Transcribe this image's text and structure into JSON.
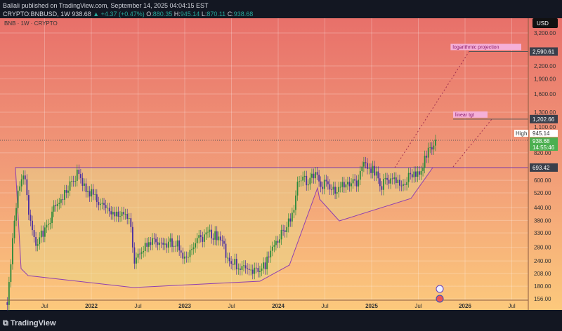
{
  "header": {
    "publisher": "Ballali published on TradingView.com, September 14, 2025 04:04:15 EST",
    "symbol": "CRYPTO:BNBUSD, 1W",
    "last": "938.68",
    "change": "+4.37 (+0.47%)",
    "o": "880.35",
    "h": "945.14",
    "l": "870.11",
    "c": "938.68"
  },
  "legend": "BNB · 1W · CRYPTO",
  "currency": "USD",
  "footer": "TradingView",
  "colors": {
    "up": "#2a8a3a",
    "down": "#4b2fa0",
    "drawing": "#9c27b0",
    "last": "#4caf50"
  },
  "chart_data": {
    "type": "candlestick",
    "title": "BNB · 1W · CRYPTO",
    "yscale": "log",
    "ylim": [
      150,
      3400
    ],
    "xlim": [
      2020.95,
      2026.6
    ],
    "y_ticks": [
      3200,
      2200,
      1900,
      1600,
      1300,
      1100,
      820,
      600,
      520,
      440,
      380,
      330,
      280,
      240,
      208,
      180,
      156
    ],
    "y_tick_labels": [
      "3,200.00",
      "2,200.00",
      "1,900.00",
      "1,600.00",
      "1,300.00",
      "1,100.00",
      "820.00",
      "600.00",
      "520.00",
      "440.00",
      "380.00",
      "330.00",
      "280.00",
      "240.00",
      "208.00",
      "180.00",
      "156.00"
    ],
    "x_ticks": [
      {
        "t": 2021.5,
        "label": "Jul"
      },
      {
        "t": 2022,
        "label": "2022"
      },
      {
        "t": 2022.5,
        "label": "Jul"
      },
      {
        "t": 2023,
        "label": "2023"
      },
      {
        "t": 2023.5,
        "label": "Jul"
      },
      {
        "t": 2024,
        "label": "2024"
      },
      {
        "t": 2024.5,
        "label": "Jul"
      },
      {
        "t": 2025,
        "label": "2025"
      },
      {
        "t": 2025.5,
        "label": "Jul"
      },
      {
        "t": 2026,
        "label": "2026"
      },
      {
        "t": 2026.5,
        "label": "Jul"
      }
    ],
    "closes": [
      [
        2021.1,
        150
      ],
      [
        2021.15,
        270
      ],
      [
        2021.2,
        480
      ],
      [
        2021.28,
        650
      ],
      [
        2021.33,
        420
      ],
      [
        2021.4,
        300
      ],
      [
        2021.5,
        330
      ],
      [
        2021.62,
        450
      ],
      [
        2021.77,
        560
      ],
      [
        2021.85,
        650
      ],
      [
        2021.92,
        560
      ],
      [
        2022,
        520
      ],
      [
        2022.11,
        450
      ],
      [
        2022.22,
        400
      ],
      [
        2022.34,
        420
      ],
      [
        2022.41,
        380
      ],
      [
        2022.46,
        230
      ],
      [
        2022.52,
        260
      ],
      [
        2022.63,
        300
      ],
      [
        2022.75,
        280
      ],
      [
        2022.9,
        300
      ],
      [
        2023,
        250
      ],
      [
        2023.11,
        300
      ],
      [
        2023.26,
        330
      ],
      [
        2023.41,
        310
      ],
      [
        2023.45,
        240
      ],
      [
        2023.56,
        230
      ],
      [
        2023.63,
        220
      ],
      [
        2023.74,
        210
      ],
      [
        2023.86,
        230
      ],
      [
        2023.97,
        300
      ],
      [
        2024.08,
        340
      ],
      [
        2024.16,
        420
      ],
      [
        2024.2,
        580
      ],
      [
        2024.31,
        600
      ],
      [
        2024.42,
        650
      ],
      [
        2024.47,
        570
      ],
      [
        2024.53,
        580
      ],
      [
        2024.6,
        530
      ],
      [
        2024.68,
        560
      ],
      [
        2024.75,
        580
      ],
      [
        2024.83,
        570
      ],
      [
        2024.9,
        700
      ],
      [
        2024.98,
        690
      ],
      [
        2025.05,
        650
      ],
      [
        2025.09,
        560
      ],
      [
        2025.17,
        600
      ],
      [
        2025.24,
        590
      ],
      [
        2025.32,
        560
      ],
      [
        2025.43,
        640
      ],
      [
        2025.5,
        650
      ],
      [
        2025.54,
        700
      ],
      [
        2025.58,
        800
      ],
      [
        2025.65,
        860
      ],
      [
        2025.7,
        938.68
      ]
    ],
    "levels": [
      {
        "value": 2590.61,
        "label": "2,590.61",
        "note": "logarithmic projection"
      },
      {
        "value": 1202.66,
        "label": "1,202.66",
        "note": "linear tgt"
      },
      {
        "value": 693.42,
        "label": "693.42"
      }
    ],
    "high": {
      "label": "High",
      "value": "945.14"
    },
    "last": {
      "value": "938.68",
      "countdown": "14:55:46"
    }
  }
}
